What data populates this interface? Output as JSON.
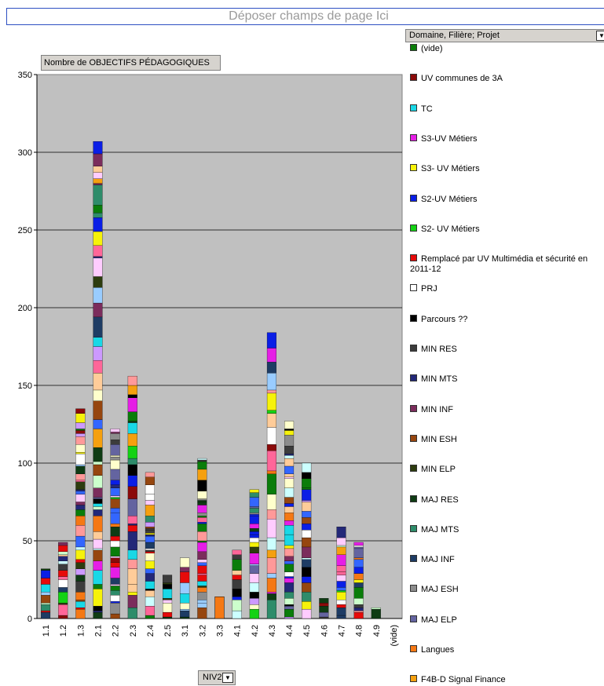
{
  "dropzone": "Déposer champs de page Ici",
  "measure_button": "Nombre de OBJECTIFS PÉDAGOGIQUES",
  "legend_field_button": "Domaine, Filière; Projet",
  "axis_field_button": "NIV2",
  "icons": {
    "dropdown": "dropdown-arrow-icon"
  },
  "legend": [
    {
      "label": "(vide)",
      "color": "#0a7d0a"
    },
    {
      "label": "UV communes de 3A",
      "color": "#8b0a0a"
    },
    {
      "label": "TC",
      "color": "#19d8e6"
    },
    {
      "label": "S3-UV Métiers",
      "color": "#e61ee6"
    },
    {
      "label": "S3- UV Métiers",
      "color": "#f6f20a"
    },
    {
      "label": "S2-UV Métiers",
      "color": "#0a1ee6"
    },
    {
      "label": "S2- UV Métiers",
      "color": "#14d214"
    },
    {
      "label": "Remplacé par UV Multimédia et sécurité en 2011-12",
      "color": "#e60a0a"
    },
    {
      "label": "PRJ",
      "color": "#ffffff"
    },
    {
      "label": "Parcours ??",
      "color": "#000000"
    },
    {
      "label": "MIN RES",
      "color": "#3c3c3c"
    },
    {
      "label": "MIN MTS",
      "color": "#232878"
    },
    {
      "label": "MIN INF",
      "color": "#7b2c5c"
    },
    {
      "label": "MIN ESH",
      "color": "#96460f"
    },
    {
      "label": "MIN ELP",
      "color": "#2d3c0f"
    },
    {
      "label": "MAJ RES",
      "color": "#0f3c14"
    },
    {
      "label": "MAJ MTS",
      "color": "#2e8c6a"
    },
    {
      "label": "MAJ INF",
      "color": "#1e3c64"
    },
    {
      "label": "MAJ ESH",
      "color": "#8c8c8c"
    },
    {
      "label": "MAJ ELP",
      "color": "#6464a0"
    },
    {
      "label": "Langues",
      "color": "#f57814"
    },
    {
      "label": "F4B-D Signal Finance",
      "color": "#f5a00f"
    }
  ],
  "chart_data": {
    "type": "bar",
    "stacked": true,
    "categories": [
      "1.1",
      "1.2",
      "1.3",
      "2.1",
      "2.2",
      "2.3",
      "2.4",
      "2.5",
      "3.1",
      "3.2",
      "3.3",
      "4.1",
      "4.2",
      "4.3",
      "4.4",
      "4.5",
      "4.6",
      "4.7",
      "4.8",
      "4.9",
      "(vide)"
    ],
    "values": [
      32,
      49,
      135,
      307,
      122,
      156,
      94,
      28,
      39,
      103,
      14,
      44,
      83,
      184,
      127,
      100,
      13,
      59,
      49,
      7,
      0
    ],
    "ylim": [
      0,
      350
    ],
    "yticks": [
      0,
      50,
      100,
      150,
      200,
      250,
      300,
      350
    ],
    "grid": true,
    "legend_position": "right"
  }
}
